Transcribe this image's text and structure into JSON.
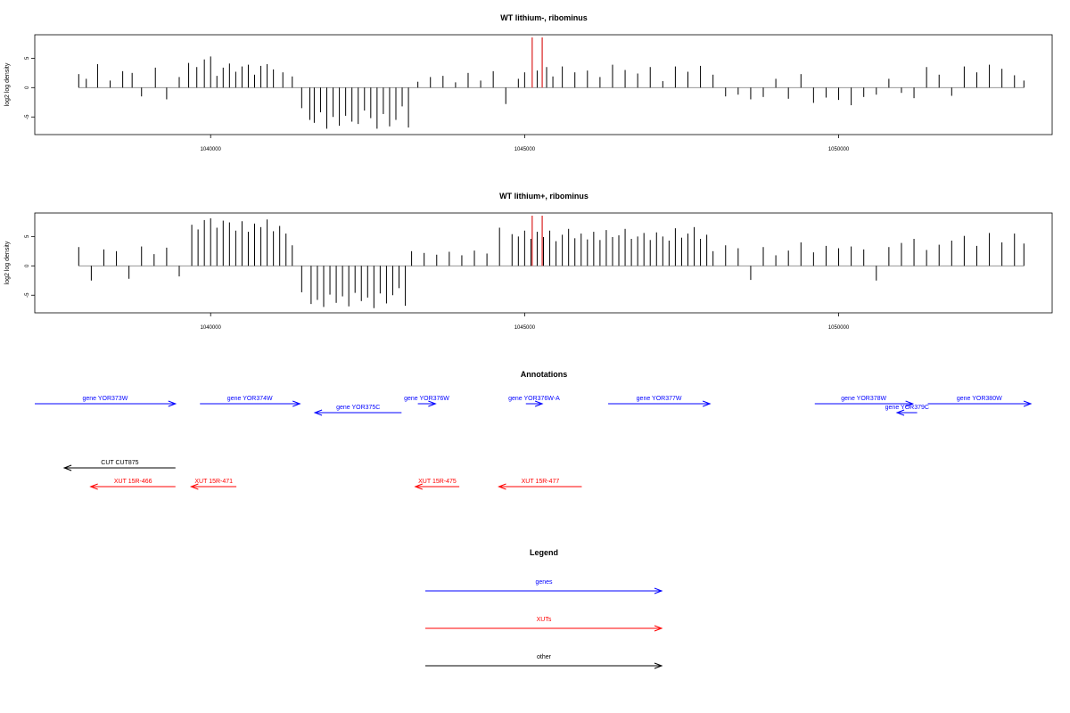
{
  "chart_data": [
    {
      "type": "bar",
      "title": "WT lithium-, ribominus",
      "ylabel": "log2 log density",
      "xlim": [
        1037200,
        1053400
      ],
      "ylim": [
        -8,
        9
      ],
      "x_ticks": [
        1040000,
        1045000,
        1050000
      ],
      "x_tick_labels": [
        "1040000",
        "1045000",
        "1050000"
      ],
      "y_ticks": [
        5,
        0,
        -5
      ],
      "y_tick_labels": [
        "5",
        "0",
        "-5"
      ],
      "markers": [
        1045120,
        1045280
      ],
      "marker_color": "#e04040",
      "series": [
        {
          "color": "#000000",
          "x": [
            1037900,
            1038020,
            1038200,
            1038400,
            1038600,
            1038750,
            1038900,
            1039120,
            1039300,
            1039500,
            1039650,
            1039780,
            1039900,
            1040000,
            1040100,
            1040200,
            1040300,
            1040400,
            1040500,
            1040600,
            1040700,
            1040800,
            1040900,
            1041000,
            1041150,
            1041300,
            1041450,
            1041580,
            1041650,
            1041750,
            1041850,
            1041950,
            1042050,
            1042150,
            1042250,
            1042350,
            1042450,
            1042550,
            1042650,
            1042750,
            1042850,
            1042950,
            1043050,
            1043150,
            1043300,
            1043500,
            1043700,
            1043900,
            1044100,
            1044300,
            1044500,
            1044700,
            1044900,
            1045000,
            1045200,
            1045350,
            1045450,
            1045600,
            1045800,
            1046000,
            1046200,
            1046400,
            1046600,
            1046800,
            1047000,
            1047200,
            1047400,
            1047600,
            1047800,
            1048000,
            1048200,
            1048400,
            1048600,
            1048800,
            1049000,
            1049200,
            1049400,
            1049600,
            1049800,
            1050000,
            1050200,
            1050400,
            1050600,
            1050800,
            1051000,
            1051200,
            1051400,
            1051600,
            1051800,
            1052000,
            1052200,
            1052400,
            1052600,
            1052800,
            1052950
          ],
          "values": [
            2.3,
            1.5,
            4.0,
            1.2,
            2.8,
            2.5,
            -1.5,
            3.4,
            -2.0,
            1.8,
            4.2,
            3.5,
            4.8,
            5.3,
            2.0,
            3.4,
            4.1,
            2.7,
            3.6,
            3.9,
            2.2,
            3.7,
            4.0,
            3.1,
            2.6,
            1.9,
            -3.5,
            -5.5,
            -6.0,
            -4.2,
            -7.0,
            -5.0,
            -6.5,
            -4.8,
            -5.8,
            -6.2,
            -3.9,
            -5.2,
            -7.0,
            -4.5,
            -6.6,
            -5.5,
            -3.2,
            -6.8,
            1.0,
            1.8,
            2.0,
            0.9,
            2.5,
            1.2,
            2.8,
            -2.8,
            1.5,
            2.6,
            2.9,
            3.5,
            1.9,
            3.6,
            2.6,
            2.9,
            1.8,
            3.9,
            3.0,
            2.4,
            3.5,
            1.1,
            3.6,
            2.7,
            3.7,
            2.2,
            -1.5,
            -1.2,
            -2.0,
            -1.6,
            1.5,
            -1.9,
            2.3,
            -2.6,
            -1.7,
            -2.1,
            -3.0,
            -1.6,
            -1.2,
            1.5,
            -0.9,
            -1.8,
            3.5,
            2.2,
            -1.4,
            3.6,
            2.6,
            3.9,
            3.2,
            2.1,
            1.2
          ]
        }
      ]
    },
    {
      "type": "bar",
      "title": "WT lithium+, ribominus",
      "ylabel": "log2 log density",
      "xlim": [
        1037200,
        1053400
      ],
      "ylim": [
        -8,
        9
      ],
      "x_ticks": [
        1040000,
        1045000,
        1050000
      ],
      "x_tick_labels": [
        "1040000",
        "1045000",
        "1050000"
      ],
      "y_ticks": [
        5,
        0,
        -5
      ],
      "y_tick_labels": [
        "5",
        "0",
        "-5"
      ],
      "markers": [
        1045120,
        1045280
      ],
      "marker_color": "#e04040",
      "series": [
        {
          "color": "#000000",
          "x": [
            1037900,
            1038100,
            1038300,
            1038500,
            1038700,
            1038900,
            1039100,
            1039300,
            1039500,
            1039700,
            1039800,
            1039900,
            1040000,
            1040100,
            1040200,
            1040300,
            1040400,
            1040500,
            1040600,
            1040700,
            1040800,
            1040900,
            1041000,
            1041100,
            1041200,
            1041300,
            1041450,
            1041600,
            1041700,
            1041800,
            1041900,
            1042000,
            1042100,
            1042200,
            1042300,
            1042400,
            1042500,
            1042600,
            1042700,
            1042800,
            1042900,
            1043000,
            1043100,
            1043200,
            1043400,
            1043600,
            1043800,
            1044000,
            1044200,
            1044400,
            1044600,
            1044800,
            1044900,
            1045000,
            1045100,
            1045200,
            1045300,
            1045400,
            1045500,
            1045600,
            1045700,
            1045800,
            1045900,
            1046000,
            1046100,
            1046200,
            1046300,
            1046400,
            1046500,
            1046600,
            1046700,
            1046800,
            1046900,
            1047000,
            1047100,
            1047200,
            1047300,
            1047400,
            1047500,
            1047600,
            1047700,
            1047800,
            1047900,
            1048000,
            1048200,
            1048400,
            1048600,
            1048800,
            1049000,
            1049200,
            1049400,
            1049600,
            1049800,
            1050000,
            1050200,
            1050400,
            1050600,
            1050800,
            1051000,
            1051200,
            1051400,
            1051600,
            1051800,
            1052000,
            1052200,
            1052400,
            1052600,
            1052800,
            1052950
          ],
          "values": [
            3.2,
            -2.5,
            2.8,
            2.5,
            -2.2,
            3.3,
            2.0,
            3.1,
            -1.8,
            7.0,
            6.2,
            7.8,
            8.1,
            6.5,
            7.7,
            7.4,
            6.0,
            7.6,
            5.8,
            7.2,
            6.6,
            7.9,
            5.9,
            6.8,
            5.5,
            3.5,
            -4.5,
            -6.5,
            -5.8,
            -7.0,
            -4.9,
            -6.3,
            -5.2,
            -6.9,
            -4.6,
            -6.0,
            -5.4,
            -7.2,
            -4.7,
            -6.4,
            -5.0,
            -3.8,
            -6.8,
            2.5,
            2.2,
            1.9,
            2.4,
            1.8,
            2.6,
            2.1,
            6.5,
            5.4,
            5.0,
            6.0,
            4.6,
            5.8,
            4.9,
            6.0,
            4.2,
            5.3,
            6.3,
            4.7,
            5.5,
            4.5,
            5.8,
            4.4,
            6.1,
            4.9,
            5.2,
            6.3,
            4.6,
            5.0,
            5.6,
            4.4,
            5.7,
            5.0,
            4.3,
            6.4,
            4.8,
            5.5,
            6.6,
            4.6,
            5.3,
            2.5,
            3.5,
            3.0,
            -2.4,
            3.2,
            1.8,
            2.6,
            4.0,
            2.3,
            3.4,
            3.0,
            3.3,
            2.8,
            -2.5,
            3.2,
            3.9,
            4.6,
            2.7,
            3.6,
            4.3,
            5.1,
            3.4,
            5.6,
            4.0,
            5.5,
            3.8
          ]
        }
      ]
    }
  ],
  "annotations": {
    "title": "Annotations",
    "genes": [
      {
        "label": "gene YOR373W",
        "color": "#0000ff",
        "row": 1,
        "x1": 1037200,
        "x2": 1039440,
        "dir": "right"
      },
      {
        "label": "gene YOR374W",
        "color": "#0000ff",
        "row": 1,
        "x1": 1039830,
        "x2": 1041420,
        "dir": "right"
      },
      {
        "label": "gene YOR375C",
        "color": "#0000ff",
        "row": 2,
        "x1": 1041660,
        "x2": 1043040,
        "dir": "left"
      },
      {
        "label": "gene YOR376W",
        "color": "#0000ff",
        "row": 1,
        "x1": 1043300,
        "x2": 1043580,
        "dir": "right"
      },
      {
        "label": "gene YOR376W-A",
        "color": "#0000ff",
        "row": 1,
        "x1": 1045020,
        "x2": 1045280,
        "dir": "right"
      },
      {
        "label": "gene YOR377W",
        "color": "#0000ff",
        "row": 1,
        "x1": 1046330,
        "x2": 1047950,
        "dir": "right"
      },
      {
        "label": "gene YOR378W",
        "color": "#0000ff",
        "row": 1,
        "x1": 1049620,
        "x2": 1051180,
        "dir": "right"
      },
      {
        "label": "gene YOR379C",
        "color": "#0000ff",
        "row": 2,
        "x1": 1050930,
        "x2": 1051250,
        "dir": "left"
      },
      {
        "label": "gene YOR380W",
        "color": "#0000ff",
        "row": 1,
        "x1": 1051420,
        "x2": 1053060,
        "dir": "right"
      }
    ],
    "other": [
      {
        "label": "CUT CUT875",
        "color": "#000000",
        "row": 3,
        "x1": 1037670,
        "x2": 1039440,
        "dir": "left"
      }
    ],
    "xuts": [
      {
        "label": "XUT 15R-466",
        "color": "#ff0000",
        "row": 4,
        "x1": 1038090,
        "x2": 1039440,
        "dir": "left"
      },
      {
        "label": "XUT 15R-471",
        "color": "#ff0000",
        "row": 4,
        "x1": 1039690,
        "x2": 1040410,
        "dir": "left"
      },
      {
        "label": "XUT 15R-475",
        "color": "#ff0000",
        "row": 4,
        "x1": 1043260,
        "x2": 1043960,
        "dir": "left"
      },
      {
        "label": "XUT 15R-477",
        "color": "#ff0000",
        "row": 4,
        "x1": 1044590,
        "x2": 1045910,
        "dir": "left"
      }
    ]
  },
  "legend": {
    "title": "Legend",
    "items": [
      {
        "label": "genes",
        "color": "#0000ff"
      },
      {
        "label": "XUTs",
        "color": "#ff0000"
      },
      {
        "label": "other",
        "color": "#000000"
      }
    ]
  }
}
